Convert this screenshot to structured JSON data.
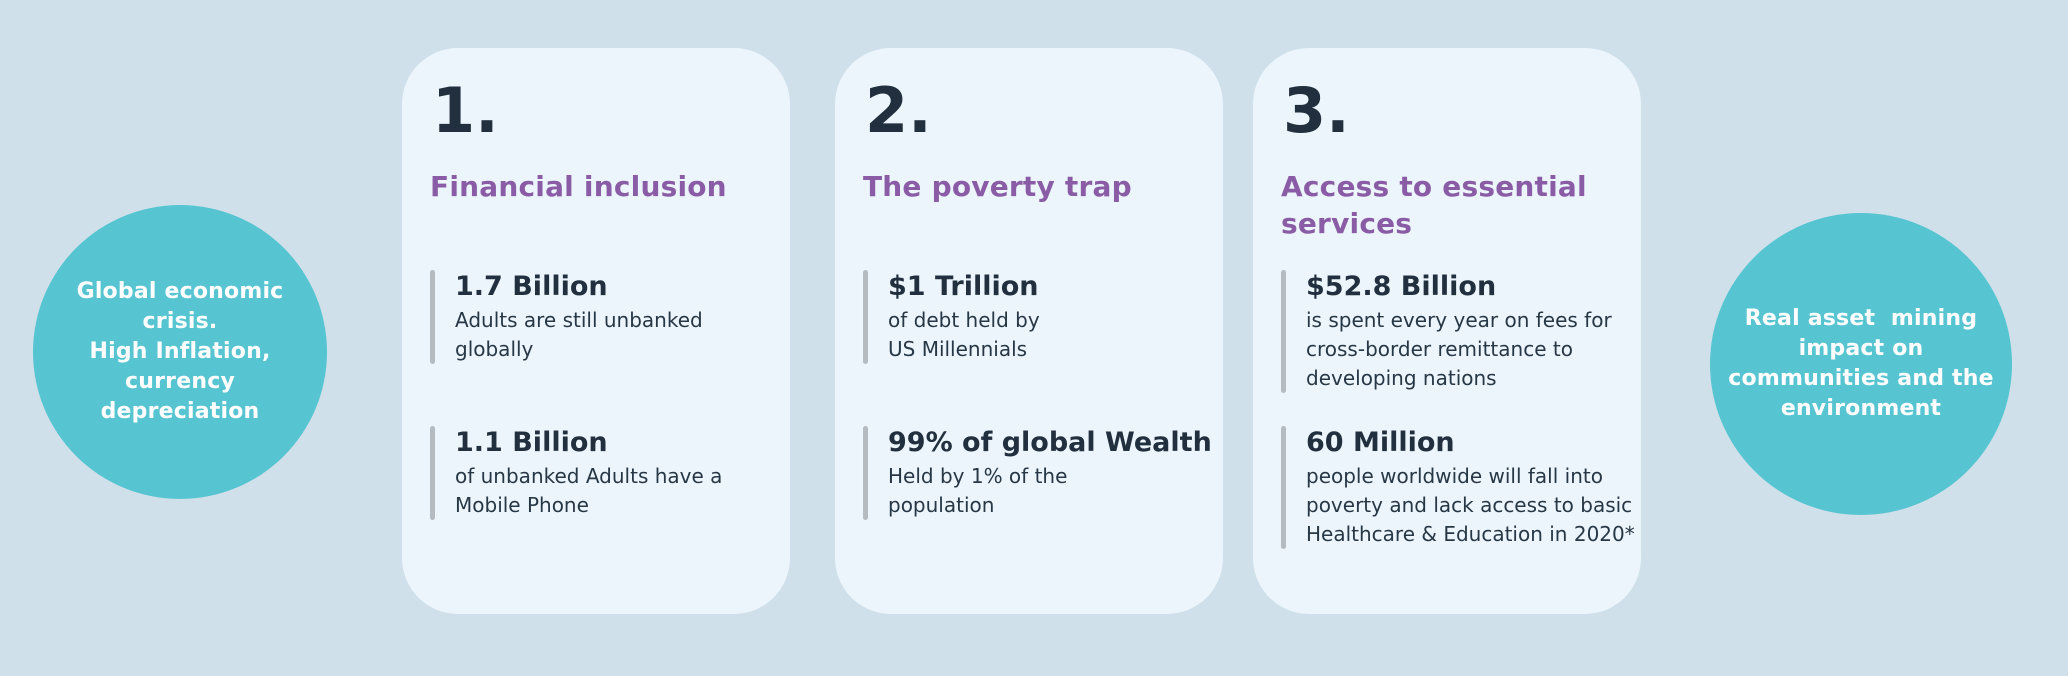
{
  "colors": {
    "page_background": "#cfe0eb",
    "card_background": "#ebf5fb",
    "circle_teal": "#57c5d1",
    "heading_purple": "#8a5ca6",
    "text_navy": "#212f3e",
    "accent_bar_gray": "#b4bbc1",
    "circle_text_white": "#ffffff"
  },
  "left_circle": {
    "text": "Global economic\ncrisis.\nHigh Inflation,\ncurrency\ndepreciation"
  },
  "right_circle": {
    "text": "Real asset  mining\nimpact on\ncommunities and the\nenvironment"
  },
  "cards": [
    {
      "number": "1.",
      "title": "Financial inclusion",
      "stats": [
        {
          "value": "1.7 Billion",
          "description": "Adults are still unbanked\nglobally"
        },
        {
          "value": "1.1 Billion",
          "description": "of unbanked Adults have a\nMobile Phone"
        }
      ]
    },
    {
      "number": "2.",
      "title": "The poverty trap",
      "stats": [
        {
          "value": "$1 Trillion",
          "description": "of debt held by\nUS Millennials"
        },
        {
          "value": "99% of global Wealth",
          "description": "Held by 1% of the\npopulation"
        }
      ]
    },
    {
      "number": "3.",
      "title": "Access to essential\nservices",
      "stats": [
        {
          "value": "$52.8 Billion",
          "description": "is spent every year on fees for\ncross-border remittance to\ndeveloping nations"
        },
        {
          "value": "60 Million",
          "description": "people worldwide will fall into\npoverty and lack access to basic\nHealthcare & Education in 2020*"
        }
      ]
    }
  ]
}
